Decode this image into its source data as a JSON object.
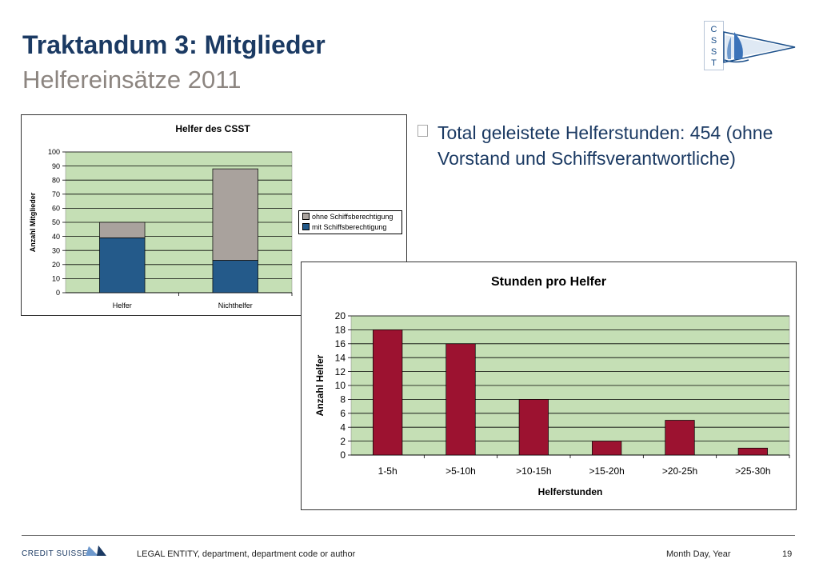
{
  "slide": {
    "title": "Traktandum 3: Mitglieder",
    "subtitle": "Helfereinsätze 2011"
  },
  "logo": {
    "letters": [
      "C",
      "S",
      "S",
      "T"
    ],
    "icon": "sailboat-flag-icon",
    "colors": {
      "frame": "#1b4f8a",
      "sail": "#3b73b9"
    }
  },
  "bullets": [
    {
      "text": "Total geleistete Helferstunden: 454 (ohne Vorstand und Schiffsverantwortliche)"
    }
  ],
  "footer": {
    "brand": "Credit Suisse",
    "entity": "LEGAL ENTITY, department, department code or author",
    "date": "Month Day, Year",
    "page": "19"
  },
  "chart_data": [
    {
      "type": "bar",
      "stacked": true,
      "title": "Helfer des CSST",
      "xlabel": "",
      "ylabel": "Anzahl Mitglieder",
      "categories": [
        "Helfer",
        "Nichthelfer"
      ],
      "series": [
        {
          "name": "mit Schiffsberechtigung",
          "values": [
            39,
            23
          ],
          "color": "#245a8a"
        },
        {
          "name": "ohne Schiffsberechtigung",
          "values": [
            11,
            65
          ],
          "color": "#a9a29d"
        }
      ],
      "ylim": [
        0,
        100
      ],
      "yticks": [
        "0",
        "10",
        "20",
        "30",
        "40",
        "50",
        "60",
        "70",
        "80",
        "90",
        "100"
      ],
      "grid": true,
      "plot_background": "#c5dfb5",
      "legend_position": "right"
    },
    {
      "type": "bar",
      "title": "Stunden pro Helfer",
      "xlabel": "Helferstunden",
      "ylabel": "Anzahl Helfer",
      "categories": [
        "1-5h",
        ">5-10h",
        ">10-15h",
        ">15-20h",
        ">20-25h",
        ">25-30h"
      ],
      "series": [
        {
          "values": [
            18,
            16,
            8,
            2,
            5,
            1
          ],
          "color": "#9c1230"
        }
      ],
      "ylim": [
        0,
        20
      ],
      "yticks": [
        "0",
        "2",
        "4",
        "6",
        "8",
        "10",
        "12",
        "14",
        "16",
        "18",
        "20"
      ],
      "grid": true,
      "plot_background": "#c5dfb5",
      "legend": false
    }
  ]
}
